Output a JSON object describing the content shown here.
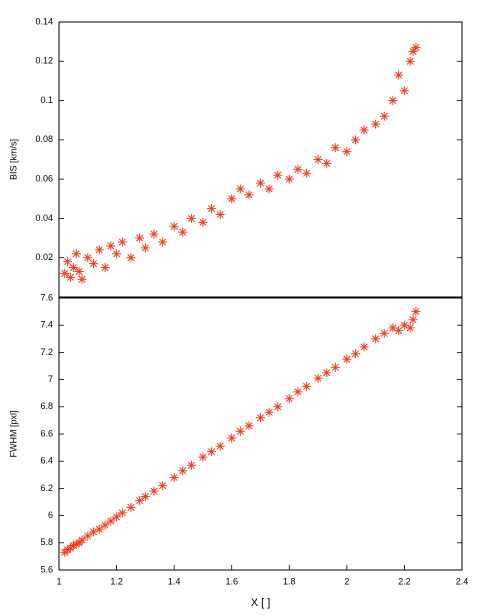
{
  "chart_data": [
    {
      "type": "scatter",
      "y_label": "BIS [km/s]",
      "color": "#f23c1c",
      "x": [
        1.02,
        1.03,
        1.04,
        1.05,
        1.06,
        1.07,
        1.08,
        1.1,
        1.12,
        1.14,
        1.16,
        1.18,
        1.2,
        1.22,
        1.25,
        1.28,
        1.3,
        1.33,
        1.36,
        1.4,
        1.43,
        1.46,
        1.5,
        1.53,
        1.56,
        1.6,
        1.63,
        1.66,
        1.7,
        1.73,
        1.76,
        1.8,
        1.83,
        1.86,
        1.9,
        1.93,
        1.96,
        2.0,
        2.03,
        2.06,
        2.1,
        2.13,
        2.16,
        2.18,
        2.2,
        2.22,
        2.23,
        2.24
      ],
      "values": [
        0.012,
        0.018,
        0.01,
        0.015,
        0.022,
        0.013,
        0.009,
        0.02,
        0.017,
        0.024,
        0.015,
        0.026,
        0.022,
        0.028,
        0.02,
        0.03,
        0.025,
        0.032,
        0.028,
        0.036,
        0.033,
        0.04,
        0.038,
        0.045,
        0.042,
        0.05,
        0.055,
        0.052,
        0.058,
        0.055,
        0.062,
        0.06,
        0.065,
        0.063,
        0.07,
        0.068,
        0.076,
        0.074,
        0.08,
        0.085,
        0.088,
        0.092,
        0.1,
        0.113,
        0.105,
        0.12,
        0.125,
        0.127
      ],
      "xlim": [
        1,
        2.4
      ],
      "ylim": [
        0,
        0.14
      ],
      "yticks": [
        0.02,
        0.04,
        0.06,
        0.08,
        0.1,
        0.12,
        0.14
      ]
    },
    {
      "type": "scatter",
      "y_label": "FWHM [pxl]",
      "x_label": "X [ ]",
      "color": "#f23c1c",
      "x": [
        1.02,
        1.03,
        1.04,
        1.05,
        1.06,
        1.07,
        1.08,
        1.1,
        1.12,
        1.14,
        1.16,
        1.18,
        1.2,
        1.22,
        1.25,
        1.28,
        1.3,
        1.33,
        1.36,
        1.4,
        1.43,
        1.46,
        1.5,
        1.53,
        1.56,
        1.6,
        1.63,
        1.66,
        1.7,
        1.73,
        1.76,
        1.8,
        1.83,
        1.86,
        1.9,
        1.93,
        1.96,
        2.0,
        2.03,
        2.06,
        2.1,
        2.13,
        2.16,
        2.18,
        2.2,
        2.22,
        2.23,
        2.24
      ],
      "values": [
        5.73,
        5.75,
        5.76,
        5.78,
        5.79,
        5.8,
        5.82,
        5.85,
        5.88,
        5.9,
        5.93,
        5.96,
        5.99,
        6.02,
        6.06,
        6.11,
        6.14,
        6.18,
        6.22,
        6.28,
        6.33,
        6.37,
        6.43,
        6.47,
        6.51,
        6.57,
        6.62,
        6.66,
        6.72,
        6.76,
        6.8,
        6.86,
        6.91,
        6.95,
        7.01,
        7.05,
        7.09,
        7.15,
        7.19,
        7.24,
        7.3,
        7.34,
        7.38,
        7.36,
        7.4,
        7.38,
        7.44,
        7.5
      ],
      "xlim": [
        1,
        2.4
      ],
      "ylim": [
        5.6,
        7.6
      ],
      "xticks": [
        1,
        1.2,
        1.4,
        1.6,
        1.8,
        2,
        2.2,
        2.4
      ],
      "yticks": [
        5.6,
        5.8,
        6,
        6.2,
        6.4,
        6.6,
        6.8,
        7,
        7.2,
        7.4,
        7.6
      ]
    }
  ]
}
